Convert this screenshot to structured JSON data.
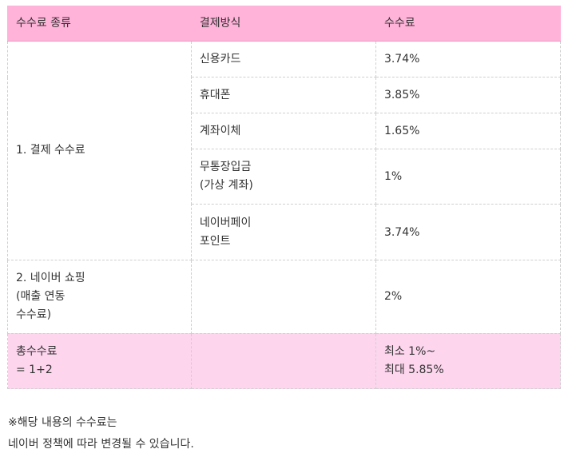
{
  "table": {
    "headers": {
      "fee_type": "수수료 종류",
      "payment_method": "결제방식",
      "fee": "수수료"
    },
    "payment_fee": {
      "label": "1. 결제 수수료",
      "rows": [
        {
          "method": "신용카드",
          "fee": "3.74%"
        },
        {
          "method": "휴대폰",
          "fee": "3.85%"
        },
        {
          "method": "계좌이체",
          "fee": "1.65%"
        },
        {
          "method": "무통장입금\n(가상 계좌)",
          "fee": "1%"
        },
        {
          "method": "네이버페이\n포인트",
          "fee": "3.74%"
        }
      ]
    },
    "shopping_fee": {
      "label": "2. 네이버 쇼핑\n(매출 연동\n수수료)",
      "method": "",
      "fee": "2%"
    },
    "total": {
      "label": "총수수료\n= 1+2",
      "method": "",
      "fee": "최소 1%~\n최대 5.85%"
    }
  },
  "note": {
    "line1": "※해당 내용의 수수료는",
    "line2": "네이버 정책에 따라 변경될 수 있습니다."
  }
}
